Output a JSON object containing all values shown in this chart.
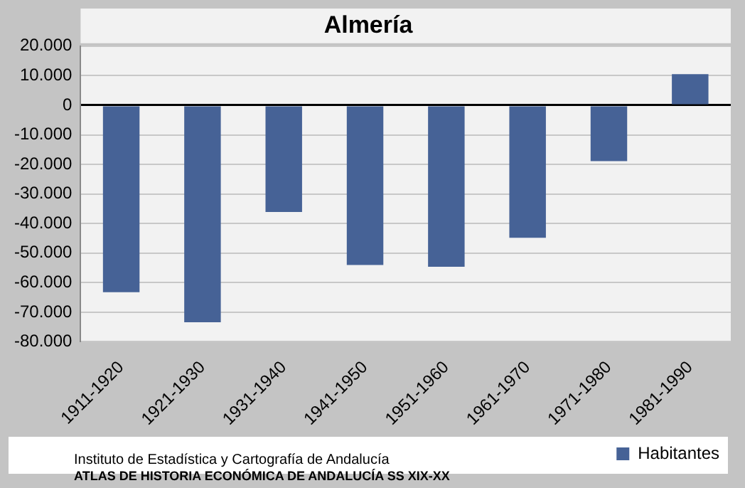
{
  "chart_data": {
    "type": "bar",
    "title": "Almería",
    "categories": [
      "1911-1920",
      "1921-1930",
      "1931-1940",
      "1941-1950",
      "1951-1960",
      "1961-1970",
      "1971-1980",
      "1981-1990"
    ],
    "series": [
      {
        "name": "Habitantes",
        "color": "#466296",
        "values": [
          -63200,
          -73400,
          -36100,
          -54000,
          -54600,
          -44800,
          -18900,
          10500
        ]
      }
    ],
    "ylim": [
      -80000,
      20000
    ],
    "yticks": [
      {
        "value": -80000,
        "label": "-80.000"
      },
      {
        "value": -70000,
        "label": "-70.000"
      },
      {
        "value": -60000,
        "label": "-60.000"
      },
      {
        "value": -50000,
        "label": "-50.000"
      },
      {
        "value": -40000,
        "label": "-40.000"
      },
      {
        "value": -30000,
        "label": "-30.000"
      },
      {
        "value": -20000,
        "label": "-20.000"
      },
      {
        "value": -10000,
        "label": "-10.000"
      },
      0,
      {
        "value": 10000,
        "label": "10.000"
      },
      {
        "value": 20000,
        "label": "20.000"
      }
    ],
    "grid": "y",
    "legend": "bottom right",
    "annotations": [
      "Instituto de Estadística y Cartografía de Andalucía",
      "ATLAS DE HISTORIA ECONÓMICA DE ANDALUCÍA SS XIX-XX"
    ]
  }
}
